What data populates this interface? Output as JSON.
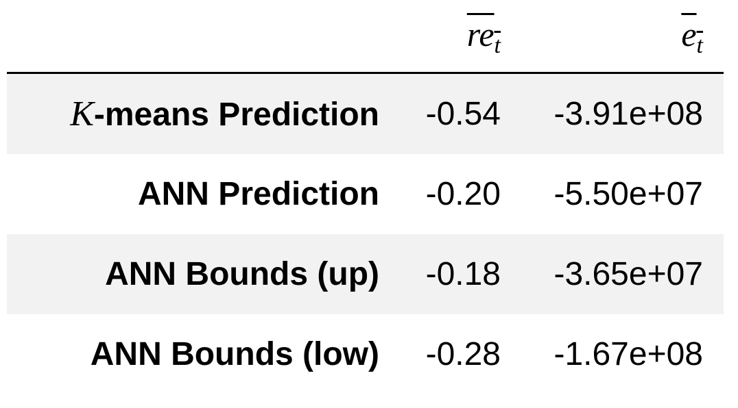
{
  "table": {
    "columns": [
      {
        "base": "re",
        "sub": "t"
      },
      {
        "base": "e",
        "sub": "t"
      }
    ],
    "rows": [
      {
        "label": {
          "math": "K",
          "text": "-means Prediction"
        },
        "values": [
          "-0.54",
          "-3.91e+08"
        ]
      },
      {
        "label": "ANN Prediction",
        "values": [
          "-0.20",
          "-5.50e+07"
        ]
      },
      {
        "label": "ANN Bounds (up)",
        "values": [
          "-0.18",
          "-3.65e+07"
        ]
      },
      {
        "label": "ANN Bounds (low)",
        "values": [
          "-0.28",
          "-1.67e+08"
        ]
      }
    ]
  }
}
